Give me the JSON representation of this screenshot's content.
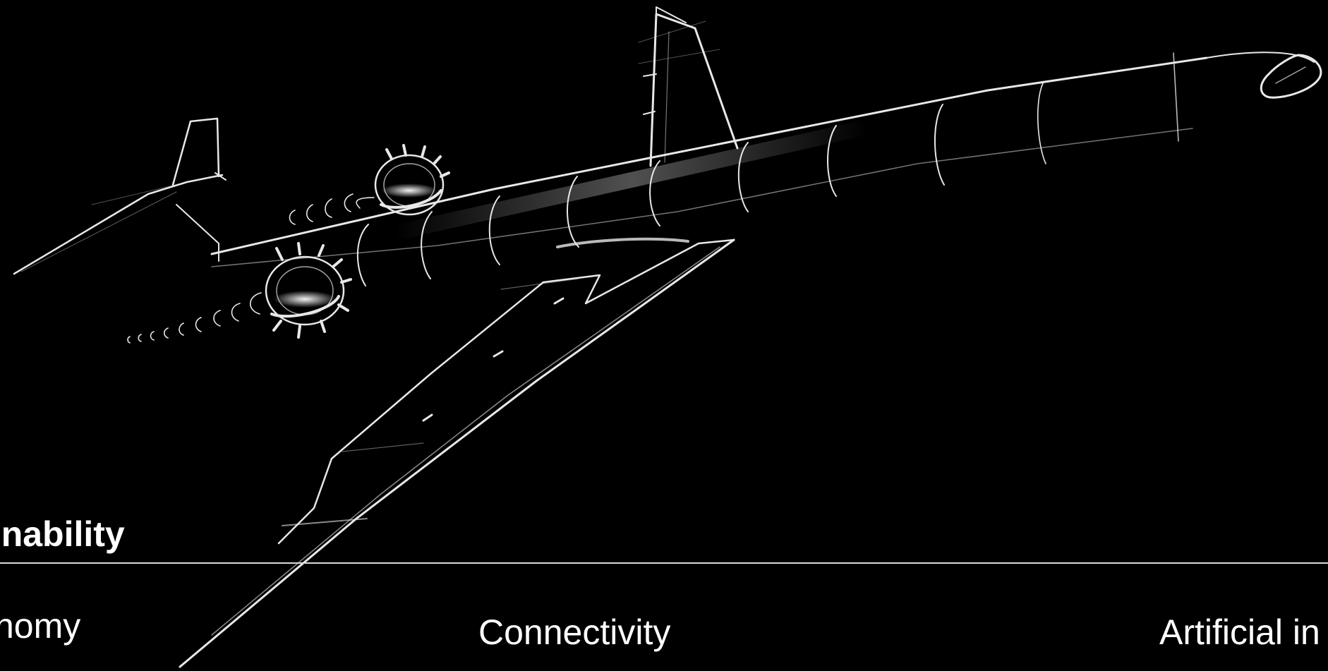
{
  "headline": "ainability",
  "topics": {
    "left": "nomy",
    "center": "Connectivity",
    "right": "Artificial in"
  },
  "colors": {
    "background": "#000000",
    "text": "#ffffff",
    "divider": "#d9d9d9"
  },
  "illustration": "aircraft-sketch-icon"
}
